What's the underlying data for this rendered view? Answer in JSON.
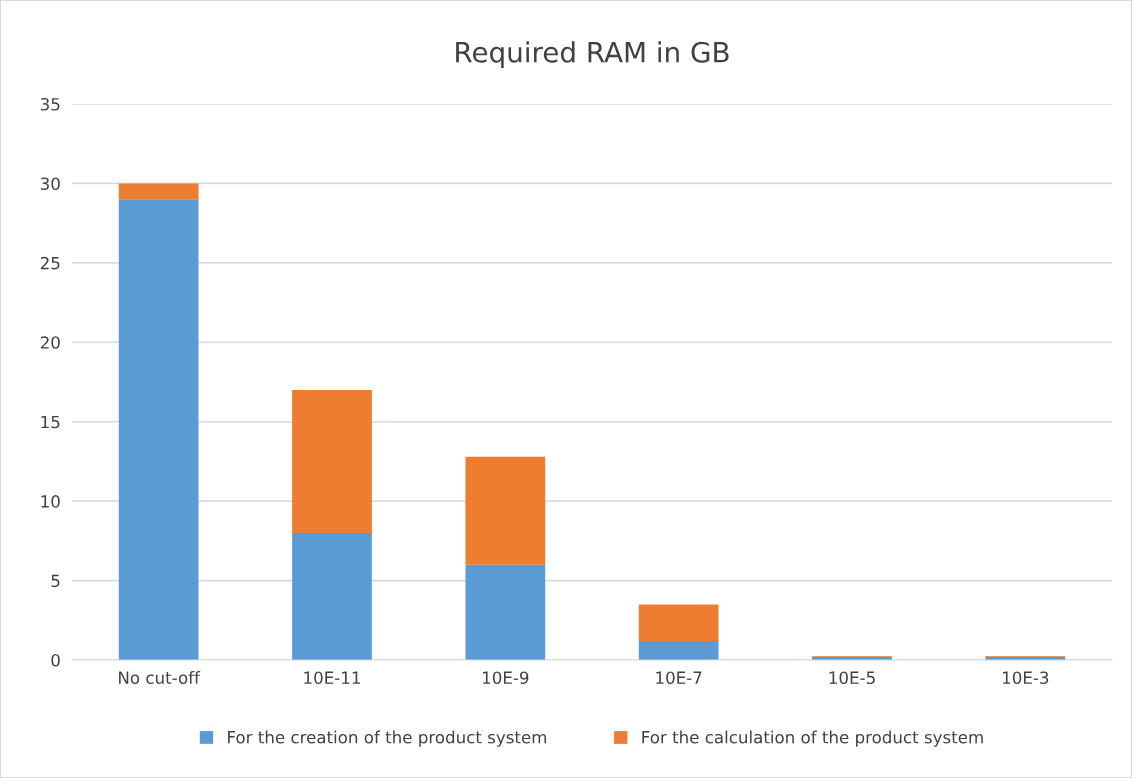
{
  "chart_data": {
    "type": "bar",
    "title": "Required RAM in GB",
    "stacked": true,
    "categories": [
      "No cut-off",
      "10E-11",
      "10E-9",
      "10E-7",
      "10E-5",
      "10E-3"
    ],
    "series": [
      {
        "name": "For the creation of the product system",
        "color": "#5b9bd5",
        "values": [
          29,
          8,
          6,
          1.2,
          0.2,
          0.2
        ]
      },
      {
        "name": "For the calculation of the product system",
        "color": "#ed7d31",
        "values": [
          1,
          9,
          6.8,
          2.3,
          0.05,
          0.05
        ]
      }
    ],
    "ylim": [
      0,
      35
    ],
    "yticks": [
      0,
      5,
      10,
      15,
      20,
      25,
      30,
      35
    ],
    "grid": "y",
    "legend": "bottom"
  }
}
